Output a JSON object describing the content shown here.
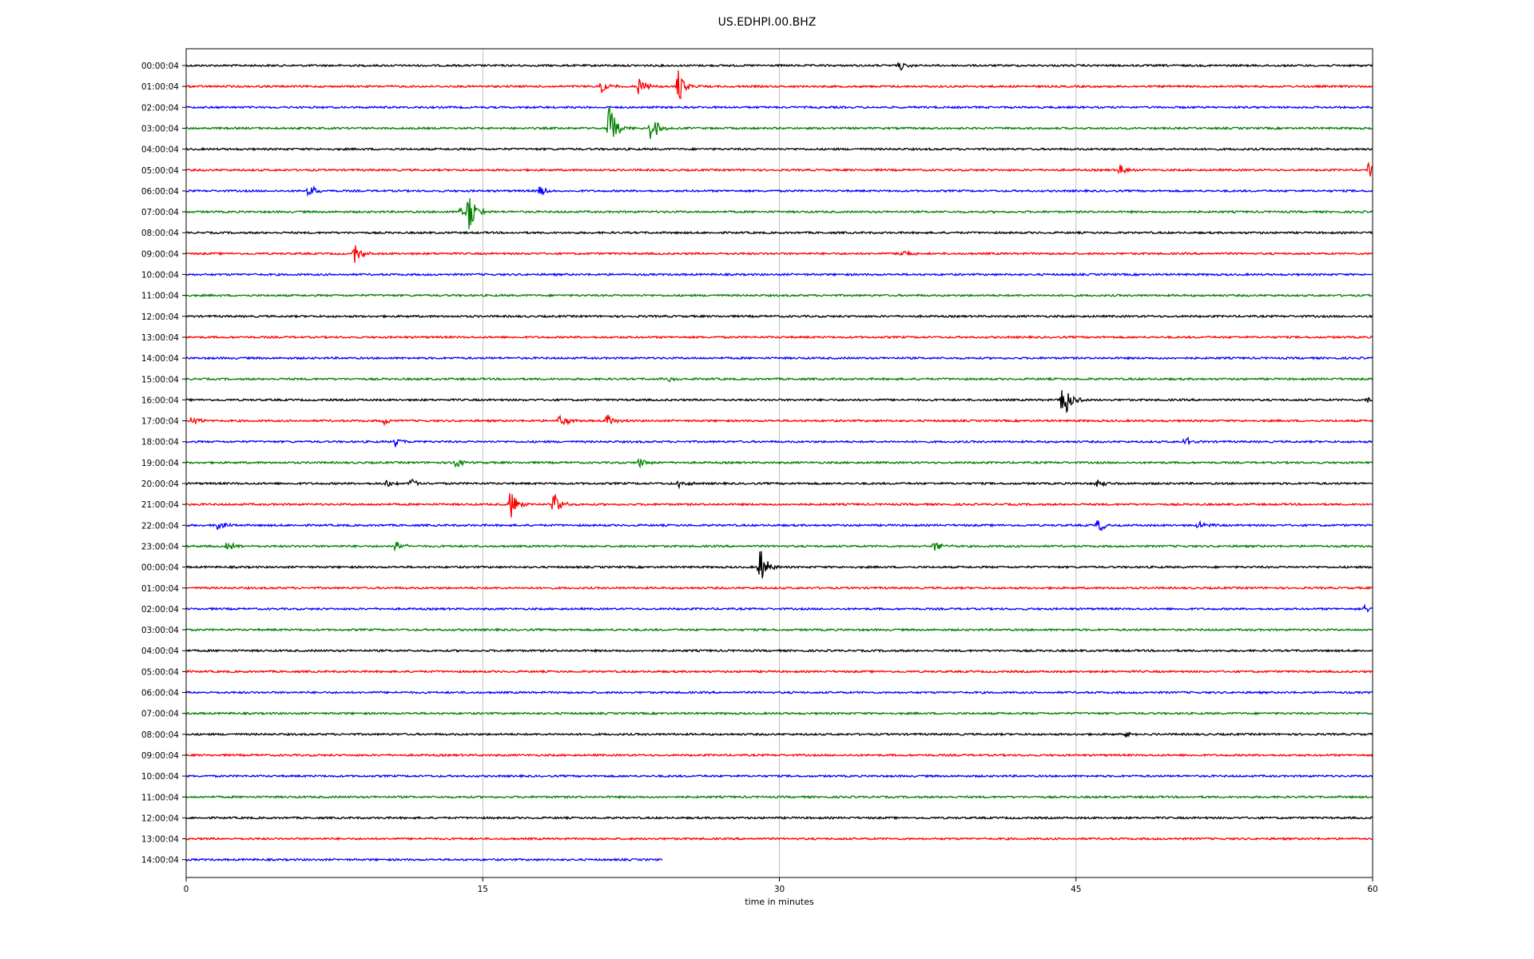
{
  "chart_data": {
    "type": "line",
    "title": "US.EDHPI.00.BHZ",
    "xlabel": "time in minutes",
    "ylabel": "",
    "xlim": [
      0,
      60
    ],
    "x_ticks": [
      0,
      15,
      30,
      45,
      60
    ],
    "grid": "vertical",
    "row_labels": [
      "00:00:04",
      "01:00:04",
      "02:00:04",
      "03:00:04",
      "04:00:04",
      "05:00:04",
      "06:00:04",
      "07:00:04",
      "08:00:04",
      "09:00:04",
      "10:00:04",
      "11:00:04",
      "12:00:04",
      "13:00:04",
      "14:00:04",
      "15:00:04",
      "16:00:04",
      "17:00:04",
      "18:00:04",
      "19:00:04",
      "20:00:04",
      "21:00:04",
      "22:00:04",
      "23:00:04",
      "00:00:04",
      "01:00:04",
      "02:00:04",
      "03:00:04",
      "04:00:04",
      "05:00:04",
      "06:00:04",
      "07:00:04",
      "08:00:04",
      "09:00:04",
      "10:00:04",
      "11:00:04",
      "12:00:04",
      "13:00:04",
      "14:00:04"
    ],
    "colors": [
      "#000000",
      "#ff0000",
      "#0000ff",
      "#008000"
    ],
    "last_row_end_minute": 24.1,
    "events": [
      {
        "row": 0,
        "minute": 36.1,
        "amp": 0.25
      },
      {
        "row": 1,
        "minute": 21.0,
        "amp": 0.4
      },
      {
        "row": 1,
        "minute": 22.9,
        "amp": 0.5
      },
      {
        "row": 1,
        "minute": 24.9,
        "amp": 1.0
      },
      {
        "row": 3,
        "minute": 21.4,
        "amp": 1.3
      },
      {
        "row": 3,
        "minute": 23.5,
        "amp": 0.9
      },
      {
        "row": 5,
        "minute": 47.2,
        "amp": 0.3
      },
      {
        "row": 5,
        "minute": 59.8,
        "amp": 0.4
      },
      {
        "row": 6,
        "minute": 6.2,
        "amp": 0.4
      },
      {
        "row": 6,
        "minute": 17.9,
        "amp": 0.3
      },
      {
        "row": 7,
        "minute": 13.9,
        "amp": 0.5
      },
      {
        "row": 7,
        "minute": 14.3,
        "amp": 1.1
      },
      {
        "row": 9,
        "minute": 8.5,
        "amp": 0.6
      },
      {
        "row": 9,
        "minute": 36.1,
        "amp": 0.3
      },
      {
        "row": 15,
        "minute": 24.4,
        "amp": 0.2
      },
      {
        "row": 16,
        "minute": 44.3,
        "amp": 1.5
      },
      {
        "row": 16,
        "minute": 59.7,
        "amp": 0.3
      },
      {
        "row": 17,
        "minute": 0.3,
        "amp": 0.3
      },
      {
        "row": 17,
        "minute": 10.0,
        "amp": 0.2
      },
      {
        "row": 17,
        "minute": 18.9,
        "amp": 0.4
      },
      {
        "row": 17,
        "minute": 21.3,
        "amp": 0.4
      },
      {
        "row": 18,
        "minute": 10.6,
        "amp": 0.3
      },
      {
        "row": 18,
        "minute": 50.5,
        "amp": 0.3
      },
      {
        "row": 19,
        "minute": 13.6,
        "amp": 0.3
      },
      {
        "row": 19,
        "minute": 22.9,
        "amp": 0.3
      },
      {
        "row": 20,
        "minute": 10.1,
        "amp": 0.3
      },
      {
        "row": 20,
        "minute": 11.4,
        "amp": 0.3
      },
      {
        "row": 20,
        "minute": 24.9,
        "amp": 0.3
      },
      {
        "row": 20,
        "minute": 46.0,
        "amp": 0.3
      },
      {
        "row": 21,
        "minute": 16.4,
        "amp": 0.9
      },
      {
        "row": 21,
        "minute": 18.6,
        "amp": 0.7
      },
      {
        "row": 22,
        "minute": 1.6,
        "amp": 0.3
      },
      {
        "row": 22,
        "minute": 46.1,
        "amp": 0.4
      },
      {
        "row": 22,
        "minute": 51.2,
        "amp": 0.3
      },
      {
        "row": 23,
        "minute": 2.1,
        "amp": 0.3
      },
      {
        "row": 23,
        "minute": 10.6,
        "amp": 0.4
      },
      {
        "row": 23,
        "minute": 37.8,
        "amp": 0.4
      },
      {
        "row": 24,
        "minute": 29.0,
        "amp": 1.2
      },
      {
        "row": 26,
        "minute": 59.6,
        "amp": 0.2
      },
      {
        "row": 32,
        "minute": 47.5,
        "amp": 0.2
      }
    ]
  }
}
